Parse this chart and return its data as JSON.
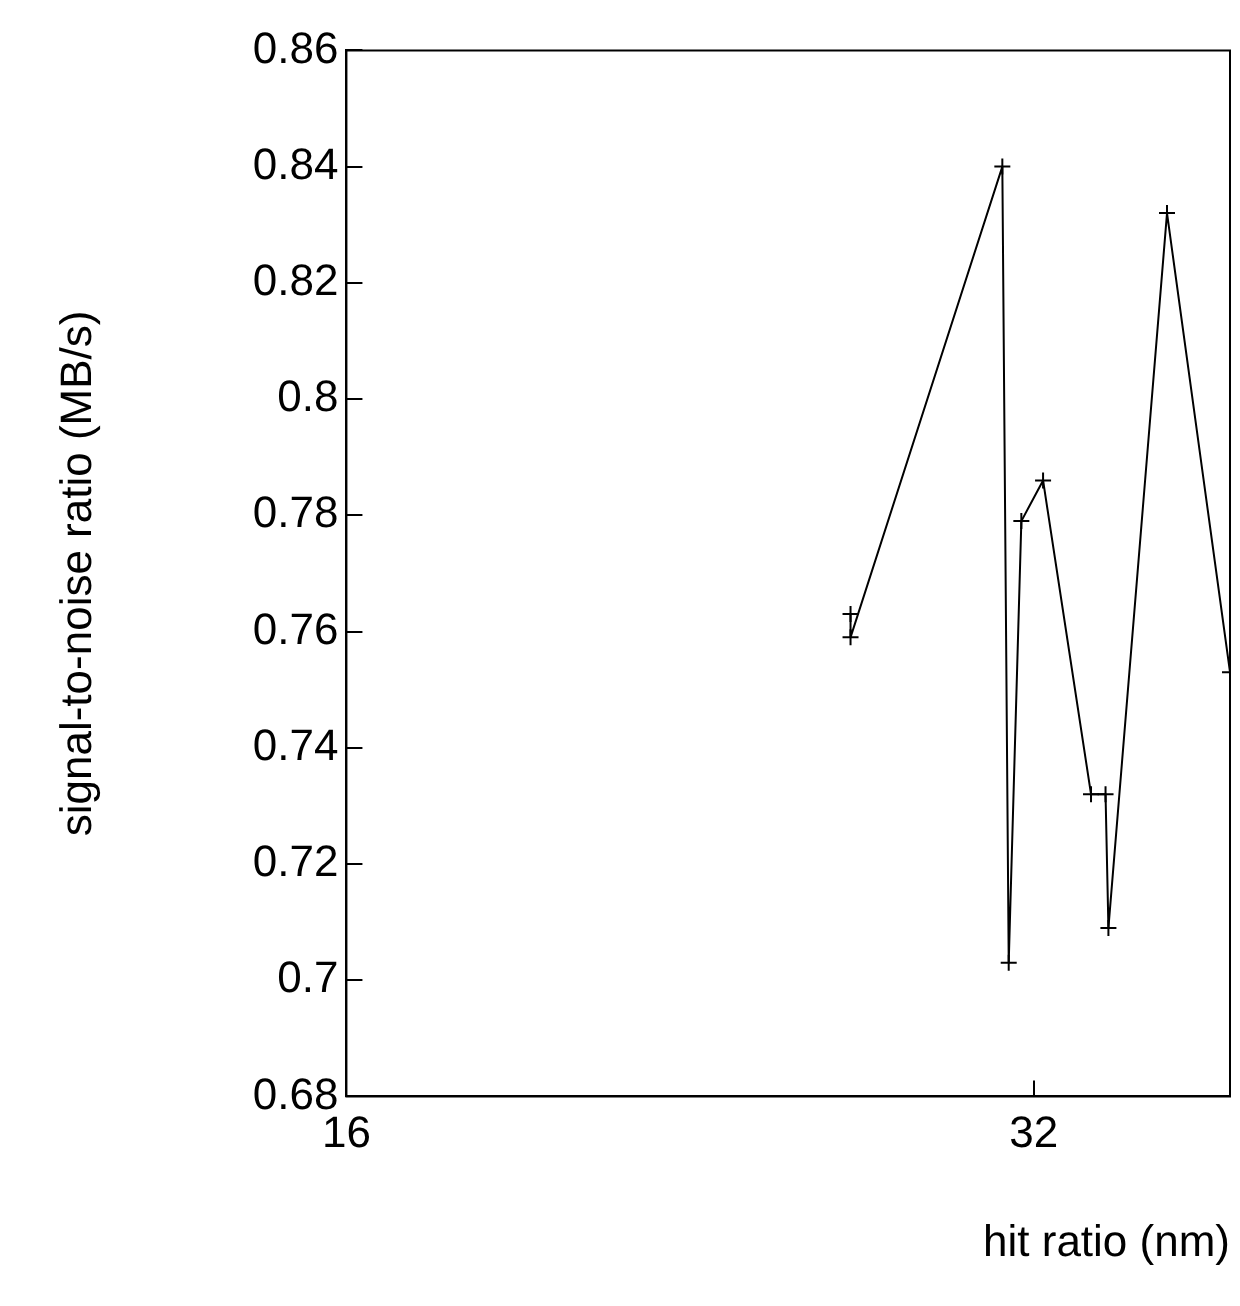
{
  "chart_data": {
    "type": "line",
    "xlabel": "hit ratio (nm)",
    "ylabel": "signal-to-noise ratio (MB/s)",
    "log": "x",
    "xlim": [
      16,
      39
    ],
    "xticks": [
      16,
      32
    ],
    "ylim": [
      0.68,
      0.86
    ],
    "yticks": [
      0.68,
      0.7,
      0.72,
      0.74,
      0.76,
      0.78,
      0.8,
      0.82,
      0.84,
      0.86
    ],
    "grid": false,
    "legend": false,
    "marker": "cross",
    "line_style": "solid",
    "series": [
      {
        "color": "#000000",
        "x": [
          26.6,
          26.6,
          31.0,
          31.2,
          31.6,
          32.3,
          33.9,
          34.4,
          34.5,
          36.6,
          39
        ],
        "values": [
          0.763,
          0.759,
          0.84,
          0.703,
          0.779,
          0.786,
          0.732,
          0.732,
          0.709,
          0.832,
          0.753
        ]
      }
    ]
  }
}
